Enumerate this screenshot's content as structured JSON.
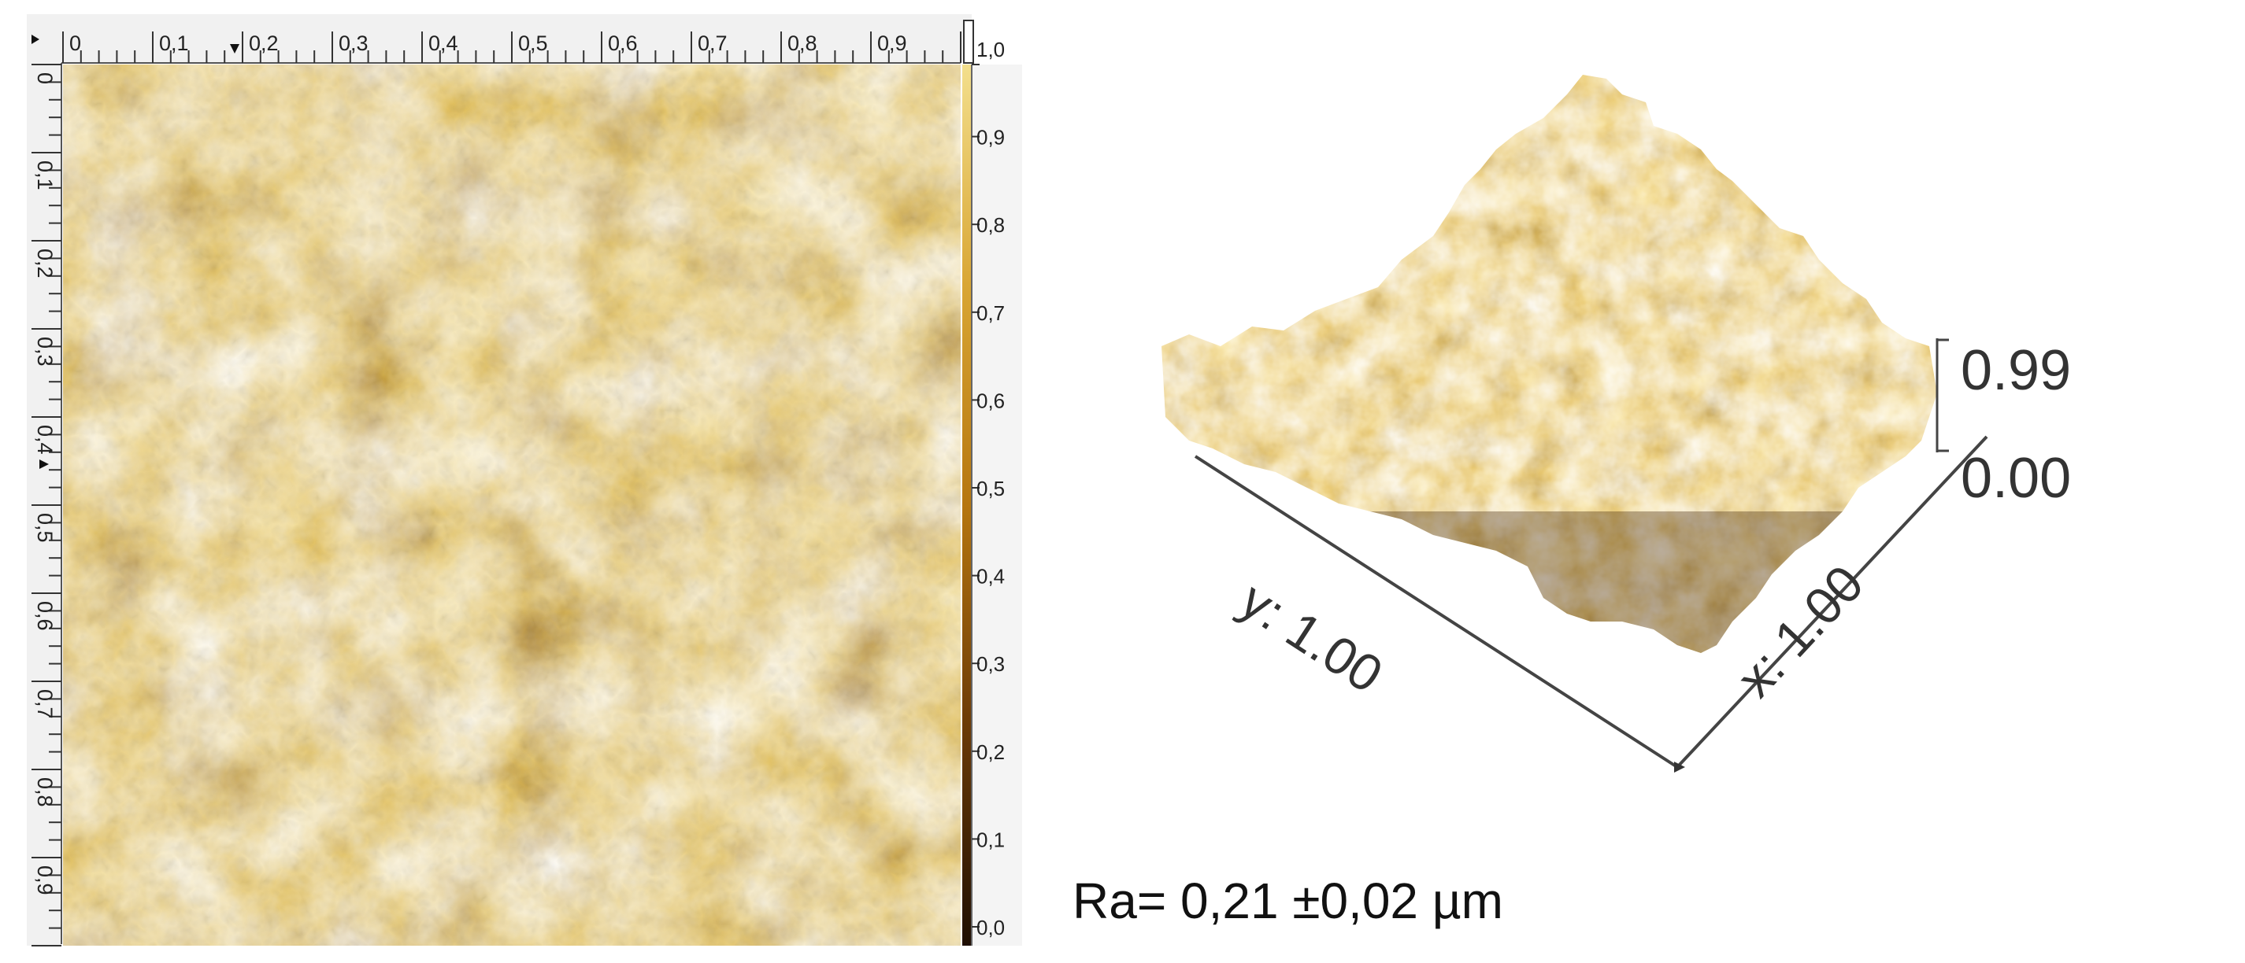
{
  "afm_2d": {
    "x_ticks": [
      "0",
      "0,1",
      "0,2",
      "0,3",
      "0,4",
      "0,5",
      "0,6",
      "0,7",
      "0,8",
      "0,9"
    ],
    "y_ticks": [
      "0",
      "0,1",
      "0,2",
      "0,3",
      "0,4",
      "0,5",
      "0,6",
      "0,7",
      "0,8",
      "0,9"
    ],
    "colorbar_ticks": [
      "1,0",
      "0,9",
      "0,8",
      "0,7",
      "0,6",
      "0,5",
      "0,4",
      "0,3",
      "0,2",
      "0,1",
      "0,0"
    ],
    "colormap": [
      "#1e0e02",
      "#6b3a06",
      "#b6760f",
      "#d9a634",
      "#f3df8c"
    ]
  },
  "afm_3d": {
    "z_max_label": "0.99",
    "z_min_label": "0.00",
    "y_axis_label": "y: 1.00",
    "x_axis_label": "x: 1.00"
  },
  "roughness": {
    "text": "Ra= 0,21 ±0,02 µm"
  }
}
